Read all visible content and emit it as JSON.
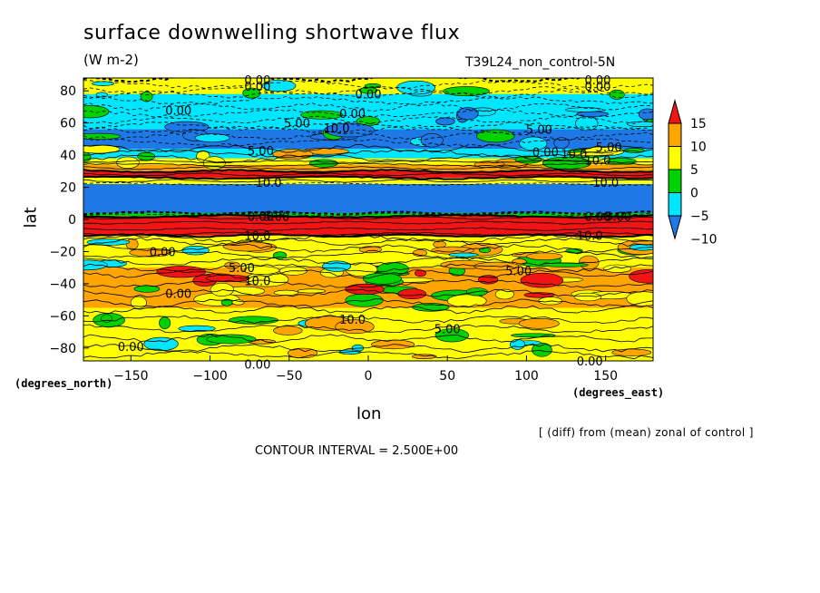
{
  "chart_data": {
    "type": "heatmap",
    "title": "surface downwelling shortwave flux",
    "units": "(W m-2)",
    "run_label": "T39L24_non_control-5N",
    "xlabel": "lon",
    "ylabel": "lat",
    "x_units": "(degrees_east)",
    "y_units": "(degrees_north)",
    "xlim": [
      -180,
      180
    ],
    "ylim": [
      -88,
      88
    ],
    "x_ticks": [
      -150,
      -100,
      -50,
      0,
      50,
      100,
      150
    ],
    "y_ticks": [
      -80,
      -60,
      -40,
      -20,
      0,
      20,
      40,
      60,
      80
    ],
    "note": "[ (diff) from (mean) zonal of control ]",
    "contour_interval": "CONTOUR INTERVAL = 2.500E+00",
    "colorbar": {
      "levels": [
        -10,
        -5,
        0,
        5,
        10,
        15
      ],
      "labels": [
        "15",
        "10",
        "5",
        "0",
        "−5",
        "−10"
      ],
      "colors": [
        "#1e78e6",
        "#00e6ff",
        "#00d200",
        "#ffff00",
        "#ffa500",
        "#f01414"
      ]
    },
    "latitude_bands": [
      {
        "lat": [
          78,
          88
        ],
        "value": 2.5
      },
      {
        "lat": [
          66,
          78
        ],
        "value": -7.5
      },
      {
        "lat": [
          56,
          66
        ],
        "value": -7.5
      },
      {
        "lat": [
          44,
          56
        ],
        "value": -12.5
      },
      {
        "lat": [
          38,
          44
        ],
        "value": -7.5
      },
      {
        "lat": [
          34,
          38
        ],
        "value": 2.5
      },
      {
        "lat": [
          30,
          34
        ],
        "value": 7.5
      },
      {
        "lat": [
          26,
          30
        ],
        "value": 17.5
      },
      {
        "lat": [
          22,
          26
        ],
        "value": 2.5
      },
      {
        "lat": [
          4,
          22
        ],
        "value": -12.5
      },
      {
        "lat": [
          2,
          4
        ],
        "value": -2.5
      },
      {
        "lat": [
          -10,
          2
        ],
        "value": 17.5
      },
      {
        "lat": [
          -18,
          -10
        ],
        "value": 2.5
      },
      {
        "lat": [
          -30,
          -18
        ],
        "value": 2.5
      },
      {
        "lat": [
          -55,
          -30
        ],
        "value": 7.5
      },
      {
        "lat": [
          -62,
          -55
        ],
        "value": 2.5
      },
      {
        "lat": [
          -88,
          -62
        ],
        "value": 2.5
      }
    ],
    "contour_labels": [
      {
        "text": "0.00",
        "lon": -70,
        "lat": 87
      },
      {
        "text": "0.00",
        "lon": -70,
        "lat": 83
      },
      {
        "text": "0.00",
        "lon": 145,
        "lat": 87
      },
      {
        "text": "0.00",
        "lon": 145,
        "lat": 83
      },
      {
        "text": "0.00",
        "lon": 0,
        "lat": 78
      },
      {
        "text": "0.00",
        "lon": -120,
        "lat": 68
      },
      {
        "text": "0.00",
        "lon": -10,
        "lat": 66
      },
      {
        "text": "5.00",
        "lon": -45,
        "lat": 60
      },
      {
        "text": "10.0",
        "lon": -20,
        "lat": 57
      },
      {
        "text": "5.00",
        "lon": 108,
        "lat": 56
      },
      {
        "text": "5.00",
        "lon": 152,
        "lat": 45
      },
      {
        "text": "10.0",
        "lon": 130,
        "lat": 41
      },
      {
        "text": "10.0",
        "lon": 145,
        "lat": 37
      },
      {
        "text": "0.00",
        "lon": 112,
        "lat": 42
      },
      {
        "text": "5.00",
        "lon": -68,
        "lat": 43
      },
      {
        "text": "10.0",
        "lon": -63,
        "lat": 23
      },
      {
        "text": "10.0",
        "lon": 150,
        "lat": 23
      },
      {
        "text": "0.00",
        "lon": -68,
        "lat": 2
      },
      {
        "text": "5.00",
        "lon": -58,
        "lat": 2
      },
      {
        "text": "0.00",
        "lon": 145,
        "lat": 2
      },
      {
        "text": "5.00",
        "lon": 158,
        "lat": 2
      },
      {
        "text": "10.0",
        "lon": -70,
        "lat": -10
      },
      {
        "text": "10.0",
        "lon": 140,
        "lat": -10
      },
      {
        "text": "0.00",
        "lon": -130,
        "lat": -20
      },
      {
        "text": "5.00",
        "lon": -80,
        "lat": -30
      },
      {
        "text": "10.0",
        "lon": -70,
        "lat": -38
      },
      {
        "text": "0.00",
        "lon": -120,
        "lat": -46
      },
      {
        "text": "5.00",
        "lon": 95,
        "lat": -32
      },
      {
        "text": "10.0",
        "lon": -10,
        "lat": -62
      },
      {
        "text": "5.00",
        "lon": 50,
        "lat": -68
      },
      {
        "text": "0.00",
        "lon": -150,
        "lat": -79
      },
      {
        "text": "0.00",
        "lon": -70,
        "lat": -90
      },
      {
        "text": "0.00",
        "lon": 140,
        "lat": -88
      }
    ]
  }
}
